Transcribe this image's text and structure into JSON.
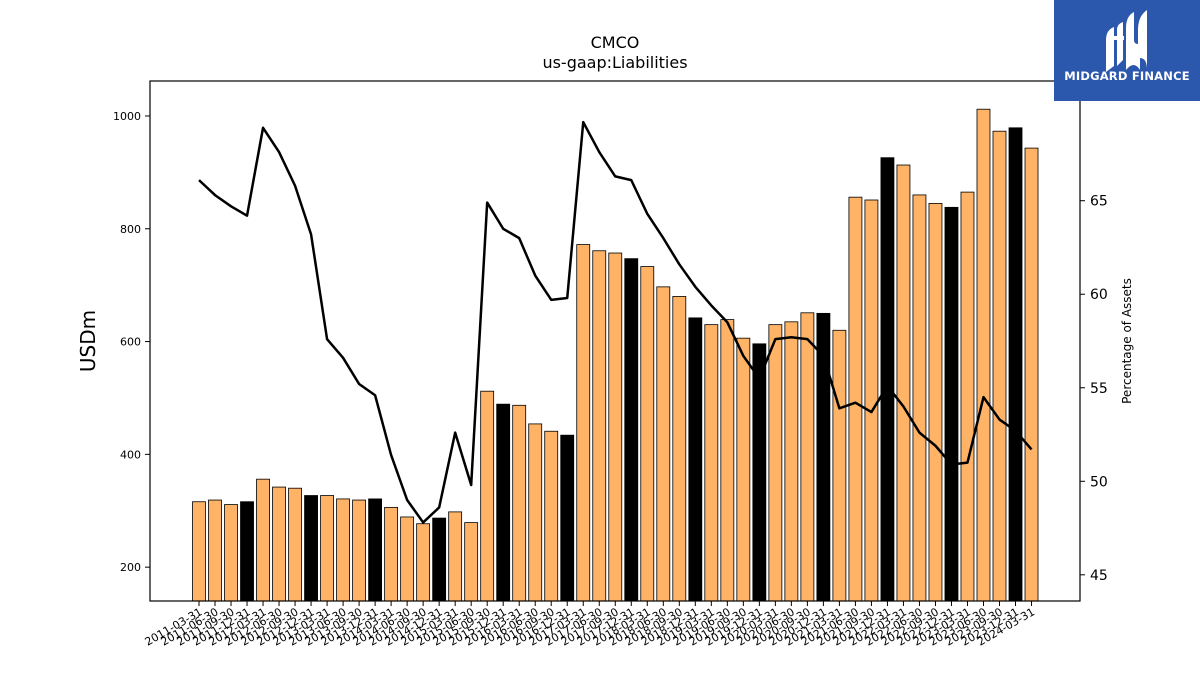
{
  "logo": {
    "text": "MIDGARD FINANCE"
  },
  "colors": {
    "bar": "#ffb366",
    "bar_highlight": "#000000",
    "line": "#000000"
  },
  "chart_data": {
    "type": "bar",
    "title": "CMCO",
    "subtitle": "us-gaap:Liabilities",
    "ylabel": "USDm",
    "y2label": "Percentage of Assets",
    "ylim": [
      140,
      1062
    ],
    "y2lim": [
      43.6,
      71.4
    ],
    "yticks": [
      200,
      400,
      600,
      800,
      1000
    ],
    "y2ticks": [
      45,
      50,
      55,
      60,
      65
    ],
    "categories": [
      "2011-03-31",
      "2011-06-30",
      "2011-09-30",
      "2011-12-31",
      "2012-03-31",
      "2012-06-30",
      "2012-09-30",
      "2012-12-31",
      "2013-03-31",
      "2013-06-30",
      "2013-09-30",
      "2013-12-31",
      "2014-03-31",
      "2014-06-30",
      "2014-09-30",
      "2014-12-31",
      "2015-03-31",
      "2015-06-30",
      "2015-09-30",
      "2015-12-31",
      "2016-03-31",
      "2016-06-30",
      "2016-09-30",
      "2016-12-31",
      "2017-03-31",
      "2017-06-30",
      "2017-09-30",
      "2017-12-31",
      "2018-03-31",
      "2018-06-30",
      "2018-09-30",
      "2018-12-31",
      "2019-03-31",
      "2019-06-30",
      "2019-09-30",
      "2019-12-31",
      "2020-03-31",
      "2020-06-30",
      "2020-09-30",
      "2020-12-31",
      "2021-03-31",
      "2021-06-30",
      "2021-09-30",
      "2021-12-31",
      "2022-03-31",
      "2022-06-30",
      "2022-09-30",
      "2022-12-31",
      "2023-03-31",
      "2023-06-30",
      "2023-09-30",
      "2023-12-31",
      "2024-03-31"
    ],
    "series": [
      {
        "type": "bar",
        "values": [
          316,
          319,
          311,
          316,
          356,
          342,
          340,
          327,
          327,
          321,
          319,
          321,
          306,
          289,
          277,
          287,
          298,
          279,
          512,
          489,
          487,
          454,
          441,
          434,
          772,
          761,
          757,
          747,
          733,
          697,
          680,
          642,
          630,
          639,
          606,
          596,
          630,
          635,
          651,
          650,
          620,
          856,
          851,
          926,
          913,
          860,
          845,
          838,
          865,
          1012,
          973,
          979,
          943
        ],
        "highlight": [
          false,
          false,
          false,
          true,
          false,
          false,
          false,
          true,
          false,
          false,
          false,
          true,
          false,
          false,
          false,
          true,
          false,
          false,
          false,
          true,
          false,
          false,
          false,
          true,
          false,
          false,
          false,
          true,
          false,
          false,
          false,
          true,
          false,
          false,
          false,
          true,
          false,
          false,
          false,
          true,
          false,
          false,
          false,
          true,
          false,
          false,
          false,
          true,
          false,
          false,
          false,
          true,
          false
        ]
      },
      {
        "type": "line",
        "axis": "right",
        "values": [
          66.1,
          65.3,
          64.7,
          64.2,
          68.9,
          67.6,
          65.8,
          63.2,
          57.6,
          56.6,
          55.2,
          54.6,
          51.4,
          49.0,
          47.8,
          48.6,
          52.6,
          49.8,
          64.9,
          63.5,
          63.0,
          61.0,
          59.7,
          59.8,
          69.2,
          67.6,
          66.3,
          66.1,
          64.3,
          63.0,
          61.6,
          60.4,
          59.4,
          58.5,
          56.7,
          55.5,
          57.6,
          57.7,
          57.6,
          56.7,
          53.9,
          54.2,
          53.7,
          55.1,
          54.0,
          52.6,
          51.9,
          50.9,
          51.0,
          54.5,
          53.3,
          52.7,
          51.7
        ]
      }
    ]
  }
}
